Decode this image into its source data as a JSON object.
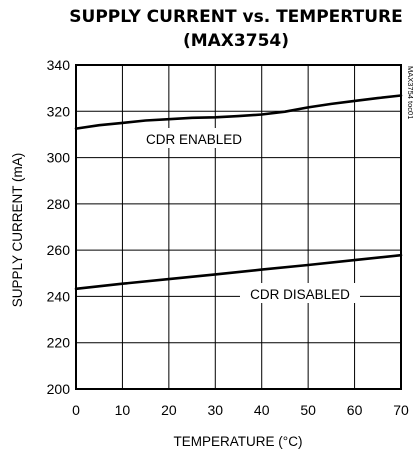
{
  "chart_data": {
    "type": "line",
    "title": "SUPPLY CURRENT vs. TEMPERTURE",
    "subtitle": "(MAX3754)",
    "xlabel": "TEMPERATURE (°C)",
    "ylabel": "SUPPLY CURRENT (mA)",
    "xlim": [
      0,
      70
    ],
    "ylim": [
      200,
      340
    ],
    "xticks": [
      0,
      10,
      20,
      30,
      40,
      50,
      60,
      70
    ],
    "yticks": [
      200,
      220,
      240,
      260,
      280,
      300,
      320,
      340
    ],
    "grid": true,
    "legend": "none",
    "series": [
      {
        "name": "CDR ENABLED",
        "x": [
          0,
          5,
          10,
          15,
          20,
          25,
          30,
          35,
          40,
          45,
          50,
          55,
          60,
          65,
          70
        ],
        "y": [
          312.5,
          314.0,
          315.0,
          316.0,
          316.6,
          317.2,
          317.4,
          317.9,
          318.6,
          319.8,
          321.7,
          323.2,
          324.5,
          325.7,
          326.8
        ]
      },
      {
        "name": "CDR DISABLED",
        "x": [
          0,
          10,
          20,
          30,
          40,
          50,
          60,
          70
        ],
        "y": [
          243.3,
          245.5,
          247.5,
          249.5,
          251.6,
          253.6,
          255.7,
          257.8
        ]
      }
    ],
    "annotation": "MAX3754 toc01"
  }
}
